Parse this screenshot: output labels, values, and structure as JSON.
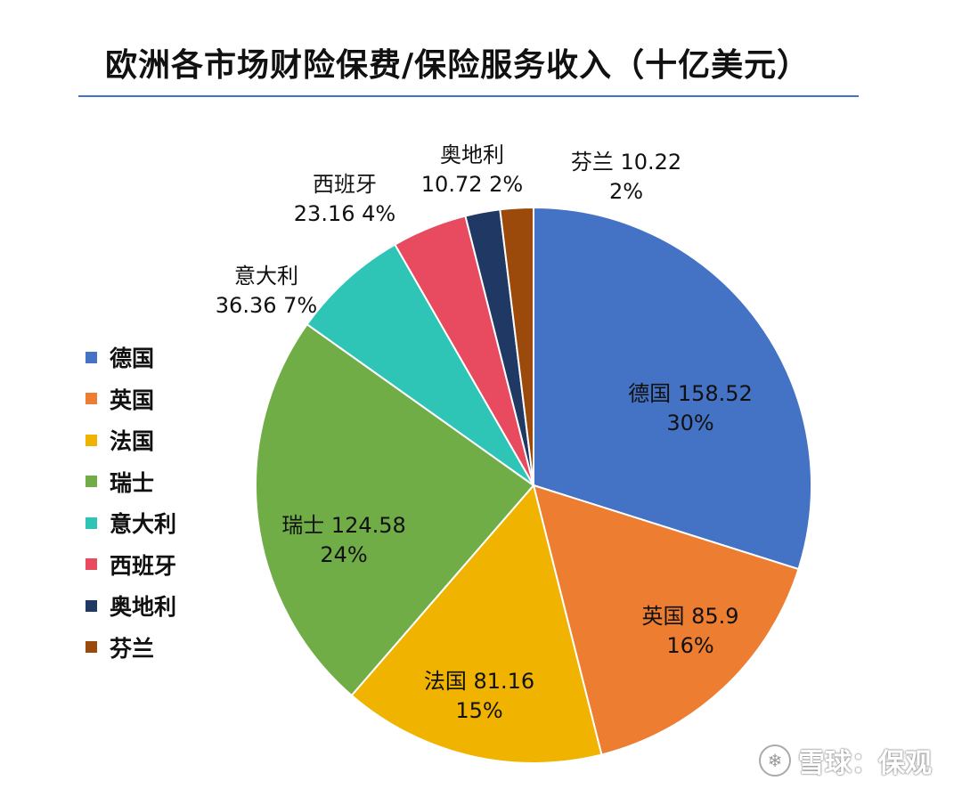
{
  "chart_data": {
    "type": "pie",
    "title": "欧洲各市场财险保费/保险服务收入（十亿美元）",
    "categories": [
      "德国",
      "英国",
      "法国",
      "瑞士",
      "意大利",
      "西班牙",
      "奥地利",
      "芬兰"
    ],
    "values": [
      158.52,
      85.9,
      81.16,
      124.58,
      36.36,
      23.16,
      10.72,
      10.22
    ],
    "percent_labels": [
      "30%",
      "16%",
      "15%",
      "24%",
      "7%",
      "4%",
      "2%",
      "2%"
    ],
    "value_labels": [
      "158.52",
      "85.9",
      "81.16",
      "124.58",
      "36.36",
      "23.16",
      "10.72",
      "10.22"
    ],
    "colors": [
      "#4472c4",
      "#ed7d31",
      "#f0b400",
      "#70ad47",
      "#2ec4b6",
      "#e84a5f",
      "#203864",
      "#9c4a0c"
    ],
    "legend_position": "left",
    "start_angle": "12 o'clock, clockwise"
  },
  "watermark": {
    "text": "雪球：保观",
    "icon": "snowball-icon"
  }
}
